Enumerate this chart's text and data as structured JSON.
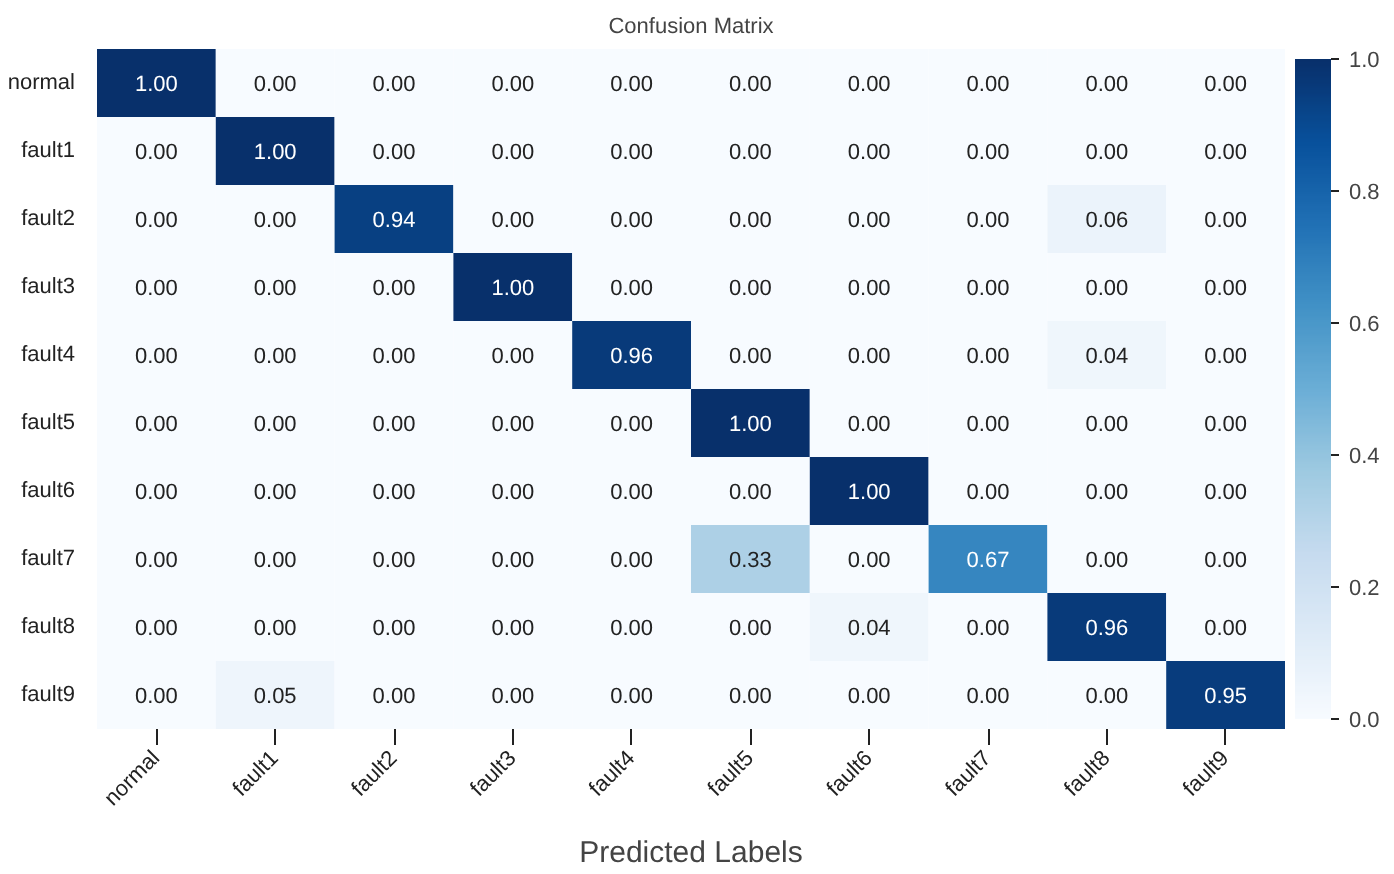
{
  "chart_data": {
    "type": "heatmap",
    "title": "Confusion Matrix",
    "xlabel": "Predicted Labels",
    "categories": [
      "normal",
      "fault1",
      "fault2",
      "fault3",
      "fault4",
      "fault5",
      "fault6",
      "fault7",
      "fault8",
      "fault9"
    ],
    "y_categories": [
      "normal",
      "fault1",
      "fault2",
      "fault3",
      "fault4",
      "fault5",
      "fault6",
      "fault7",
      "fault8",
      "fault9"
    ],
    "cells": [
      [
        1.0,
        0,
        0,
        0,
        0,
        0,
        0,
        0,
        0,
        0
      ],
      [
        0,
        1.0,
        0,
        0,
        0,
        0,
        0,
        0,
        0,
        0
      ],
      [
        0,
        0,
        0.94,
        0,
        0,
        0,
        0,
        0,
        0.06,
        0
      ],
      [
        0,
        0,
        0,
        1.0,
        0,
        0,
        0,
        0,
        0,
        0
      ],
      [
        0,
        0,
        0,
        0,
        0.96,
        0,
        0,
        0,
        0.04,
        0
      ],
      [
        0,
        0,
        0,
        0,
        0,
        1.0,
        0,
        0,
        0,
        0
      ],
      [
        0,
        0,
        0,
        0,
        0,
        0,
        1.0,
        0,
        0,
        0
      ],
      [
        0,
        0,
        0,
        0,
        0,
        0.33,
        0,
        0.67,
        0,
        0
      ],
      [
        0,
        0,
        0,
        0,
        0,
        0,
        0.04,
        0,
        0.96,
        0
      ],
      [
        0,
        0.05,
        0,
        0,
        0,
        0,
        0,
        0,
        0,
        0.95
      ]
    ],
    "cell_labels": [
      [
        "1.00",
        "0.00",
        "0.00",
        "0.00",
        "0.00",
        "0.00",
        "0.00",
        "0.00",
        "0.00",
        "0.00"
      ],
      [
        "0.00",
        "1.00",
        "0.00",
        "0.00",
        "0.00",
        "0.00",
        "0.00",
        "0.00",
        "0.00",
        "0.00"
      ],
      [
        "0.00",
        "0.00",
        "0.94",
        "0.00",
        "0.00",
        "0.00",
        "0.00",
        "0.00",
        "0.06",
        "0.00"
      ],
      [
        "0.00",
        "0.00",
        "0.00",
        "1.00",
        "0.00",
        "0.00",
        "0.00",
        "0.00",
        "0.00",
        "0.00"
      ],
      [
        "0.00",
        "0.00",
        "0.00",
        "0.00",
        "0.96",
        "0.00",
        "0.00",
        "0.00",
        "0.04",
        "0.00"
      ],
      [
        "0.00",
        "0.00",
        "0.00",
        "0.00",
        "0.00",
        "1.00",
        "0.00",
        "0.00",
        "0.00",
        "0.00"
      ],
      [
        "0.00",
        "0.00",
        "0.00",
        "0.00",
        "0.00",
        "0.00",
        "1.00",
        "0.00",
        "0.00",
        "0.00"
      ],
      [
        "0.00",
        "0.00",
        "0.00",
        "0.00",
        "0.00",
        "0.33",
        "0.00",
        "0.67",
        "0.00",
        "0.00"
      ],
      [
        "0.00",
        "0.00",
        "0.00",
        "0.00",
        "0.00",
        "0.00",
        "0.04",
        "0.00",
        "0.96",
        "0.00"
      ],
      [
        "0.00",
        "0.05",
        "0.00",
        "0.00",
        "0.00",
        "0.00",
        "0.00",
        "0.00",
        "0.00",
        "0.95"
      ]
    ],
    "clim": [
      0,
      1
    ],
    "cticks": [
      {
        "value": 0,
        "label": "0.0"
      },
      0.2,
      0.4,
      0.6,
      0.8,
      {
        "value": 1,
        "label": "1.0"
      }
    ]
  }
}
